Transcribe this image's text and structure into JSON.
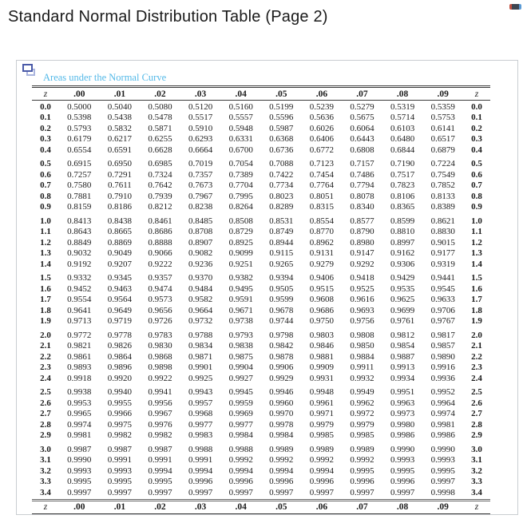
{
  "title": "Standard Normal Distribution Table (Page 2)",
  "window_controls": {
    "handle_icon": "window-handle-icon"
  },
  "panel": {
    "caption": "Areas under the Normal Curve",
    "caption_color": "#54b9e8",
    "copy_icon": "copy-windows-icon",
    "border_color": "#c9cdd1"
  },
  "table": {
    "col_headers": [
      "z",
      ".00",
      ".01",
      ".02",
      ".03",
      ".04",
      ".05",
      ".06",
      ".07",
      ".08",
      ".09",
      "z"
    ],
    "group_size": 5,
    "rows": [
      {
        "z": "0.0",
        "values": [
          "0.5000",
          "0.5040",
          "0.5080",
          "0.5120",
          "0.5160",
          "0.5199",
          "0.5239",
          "0.5279",
          "0.5319",
          "0.5359"
        ]
      },
      {
        "z": "0.1",
        "values": [
          "0.5398",
          "0.5438",
          "0.5478",
          "0.5517",
          "0.5557",
          "0.5596",
          "0.5636",
          "0.5675",
          "0.5714",
          "0.5753"
        ]
      },
      {
        "z": "0.2",
        "values": [
          "0.5793",
          "0.5832",
          "0.5871",
          "0.5910",
          "0.5948",
          "0.5987",
          "0.6026",
          "0.6064",
          "0.6103",
          "0.6141"
        ]
      },
      {
        "z": "0.3",
        "values": [
          "0.6179",
          "0.6217",
          "0.6255",
          "0.6293",
          "0.6331",
          "0.6368",
          "0.6406",
          "0.6443",
          "0.6480",
          "0.6517"
        ]
      },
      {
        "z": "0.4",
        "values": [
          "0.6554",
          "0.6591",
          "0.6628",
          "0.6664",
          "0.6700",
          "0.6736",
          "0.6772",
          "0.6808",
          "0.6844",
          "0.6879"
        ]
      },
      {
        "z": "0.5",
        "values": [
          "0.6915",
          "0.6950",
          "0.6985",
          "0.7019",
          "0.7054",
          "0.7088",
          "0.7123",
          "0.7157",
          "0.7190",
          "0.7224"
        ]
      },
      {
        "z": "0.6",
        "values": [
          "0.7257",
          "0.7291",
          "0.7324",
          "0.7357",
          "0.7389",
          "0.7422",
          "0.7454",
          "0.7486",
          "0.7517",
          "0.7549"
        ]
      },
      {
        "z": "0.7",
        "values": [
          "0.7580",
          "0.7611",
          "0.7642",
          "0.7673",
          "0.7704",
          "0.7734",
          "0.7764",
          "0.7794",
          "0.7823",
          "0.7852"
        ]
      },
      {
        "z": "0.8",
        "values": [
          "0.7881",
          "0.7910",
          "0.7939",
          "0.7967",
          "0.7995",
          "0.8023",
          "0.8051",
          "0.8078",
          "0.8106",
          "0.8133"
        ]
      },
      {
        "z": "0.9",
        "values": [
          "0.8159",
          "0.8186",
          "0.8212",
          "0.8238",
          "0.8264",
          "0.8289",
          "0.8315",
          "0.8340",
          "0.8365",
          "0.8389"
        ]
      },
      {
        "z": "1.0",
        "values": [
          "0.8413",
          "0.8438",
          "0.8461",
          "0.8485",
          "0.8508",
          "0.8531",
          "0.8554",
          "0.8577",
          "0.8599",
          "0.8621"
        ]
      },
      {
        "z": "1.1",
        "values": [
          "0.8643",
          "0.8665",
          "0.8686",
          "0.8708",
          "0.8729",
          "0.8749",
          "0.8770",
          "0.8790",
          "0.8810",
          "0.8830"
        ]
      },
      {
        "z": "1.2",
        "values": [
          "0.8849",
          "0.8869",
          "0.8888",
          "0.8907",
          "0.8925",
          "0.8944",
          "0.8962",
          "0.8980",
          "0.8997",
          "0.9015"
        ]
      },
      {
        "z": "1.3",
        "values": [
          "0.9032",
          "0.9049",
          "0.9066",
          "0.9082",
          "0.9099",
          "0.9115",
          "0.9131",
          "0.9147",
          "0.9162",
          "0.9177"
        ]
      },
      {
        "z": "1.4",
        "values": [
          "0.9192",
          "0.9207",
          "0.9222",
          "0.9236",
          "0.9251",
          "0.9265",
          "0.9279",
          "0.9292",
          "0.9306",
          "0.9319"
        ]
      },
      {
        "z": "1.5",
        "values": [
          "0.9332",
          "0.9345",
          "0.9357",
          "0.9370",
          "0.9382",
          "0.9394",
          "0.9406",
          "0.9418",
          "0.9429",
          "0.9441"
        ]
      },
      {
        "z": "1.6",
        "values": [
          "0.9452",
          "0.9463",
          "0.9474",
          "0.9484",
          "0.9495",
          "0.9505",
          "0.9515",
          "0.9525",
          "0.9535",
          "0.9545"
        ]
      },
      {
        "z": "1.7",
        "values": [
          "0.9554",
          "0.9564",
          "0.9573",
          "0.9582",
          "0.9591",
          "0.9599",
          "0.9608",
          "0.9616",
          "0.9625",
          "0.9633"
        ]
      },
      {
        "z": "1.8",
        "values": [
          "0.9641",
          "0.9649",
          "0.9656",
          "0.9664",
          "0.9671",
          "0.9678",
          "0.9686",
          "0.9693",
          "0.9699",
          "0.9706"
        ]
      },
      {
        "z": "1.9",
        "values": [
          "0.9713",
          "0.9719",
          "0.9726",
          "0.9732",
          "0.9738",
          "0.9744",
          "0.9750",
          "0.9756",
          "0.9761",
          "0.9767"
        ]
      },
      {
        "z": "2.0",
        "values": [
          "0.9772",
          "0.9778",
          "0.9783",
          "0.9788",
          "0.9793",
          "0.9798",
          "0.9803",
          "0.9808",
          "0.9812",
          "0.9817"
        ]
      },
      {
        "z": "2.1",
        "values": [
          "0.9821",
          "0.9826",
          "0.9830",
          "0.9834",
          "0.9838",
          "0.9842",
          "0.9846",
          "0.9850",
          "0.9854",
          "0.9857"
        ]
      },
      {
        "z": "2.2",
        "values": [
          "0.9861",
          "0.9864",
          "0.9868",
          "0.9871",
          "0.9875",
          "0.9878",
          "0.9881",
          "0.9884",
          "0.9887",
          "0.9890"
        ]
      },
      {
        "z": "2.3",
        "values": [
          "0.9893",
          "0.9896",
          "0.9898",
          "0.9901",
          "0.9904",
          "0.9906",
          "0.9909",
          "0.9911",
          "0.9913",
          "0.9916"
        ]
      },
      {
        "z": "2.4",
        "values": [
          "0.9918",
          "0.9920",
          "0.9922",
          "0.9925",
          "0.9927",
          "0.9929",
          "0.9931",
          "0.9932",
          "0.9934",
          "0.9936"
        ]
      },
      {
        "z": "2.5",
        "values": [
          "0.9938",
          "0.9940",
          "0.9941",
          "0.9943",
          "0.9945",
          "0.9946",
          "0.9948",
          "0.9949",
          "0.9951",
          "0.9952"
        ]
      },
      {
        "z": "2.6",
        "values": [
          "0.9953",
          "0.9955",
          "0.9956",
          "0.9957",
          "0.9959",
          "0.9960",
          "0.9961",
          "0.9962",
          "0.9963",
          "0.9964"
        ]
      },
      {
        "z": "2.7",
        "values": [
          "0.9965",
          "0.9966",
          "0.9967",
          "0.9968",
          "0.9969",
          "0.9970",
          "0.9971",
          "0.9972",
          "0.9973",
          "0.9974"
        ]
      },
      {
        "z": "2.8",
        "values": [
          "0.9974",
          "0.9975",
          "0.9976",
          "0.9977",
          "0.9977",
          "0.9978",
          "0.9979",
          "0.9979",
          "0.9980",
          "0.9981"
        ]
      },
      {
        "z": "2.9",
        "values": [
          "0.9981",
          "0.9982",
          "0.9982",
          "0.9983",
          "0.9984",
          "0.9984",
          "0.9985",
          "0.9985",
          "0.9986",
          "0.9986"
        ]
      },
      {
        "z": "3.0",
        "values": [
          "0.9987",
          "0.9987",
          "0.9987",
          "0.9988",
          "0.9988",
          "0.9989",
          "0.9989",
          "0.9989",
          "0.9990",
          "0.9990"
        ]
      },
      {
        "z": "3.1",
        "values": [
          "0.9990",
          "0.9991",
          "0.9991",
          "0.9991",
          "0.9992",
          "0.9992",
          "0.9992",
          "0.9992",
          "0.9993",
          "0.9993"
        ]
      },
      {
        "z": "3.2",
        "values": [
          "0.9993",
          "0.9993",
          "0.9994",
          "0.9994",
          "0.9994",
          "0.9994",
          "0.9994",
          "0.9995",
          "0.9995",
          "0.9995"
        ]
      },
      {
        "z": "3.3",
        "values": [
          "0.9995",
          "0.9995",
          "0.9995",
          "0.9996",
          "0.9996",
          "0.9996",
          "0.9996",
          "0.9996",
          "0.9996",
          "0.9997"
        ]
      },
      {
        "z": "3.4",
        "values": [
          "0.9997",
          "0.9997",
          "0.9997",
          "0.9997",
          "0.9997",
          "0.9997",
          "0.9997",
          "0.9997",
          "0.9997",
          "0.9998"
        ]
      }
    ]
  }
}
